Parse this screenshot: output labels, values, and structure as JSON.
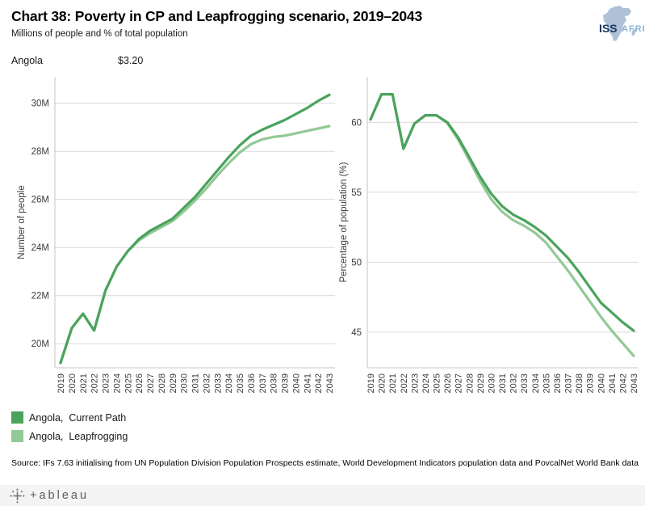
{
  "header": {
    "title": "Chart 38: Poverty in CP and Leapfrogging scenario, 2019–2043",
    "subtitle": "Millions of people and % of total population",
    "logo": {
      "org": "ISS",
      "region": "AFRICA"
    }
  },
  "filters": {
    "country": "Angola",
    "poverty_line": "$3.20"
  },
  "chart_data": [
    {
      "type": "line",
      "title": "",
      "xlabel": "",
      "ylabel": "Number of people",
      "x": [
        2019,
        2020,
        2021,
        2022,
        2023,
        2024,
        2025,
        2026,
        2027,
        2028,
        2029,
        2030,
        2031,
        2032,
        2033,
        2034,
        2035,
        2036,
        2037,
        2038,
        2039,
        2040,
        2041,
        2042,
        2043
      ],
      "ylim": [
        19.0,
        31.1
      ],
      "yticks": [
        20,
        22,
        24,
        26,
        28,
        30
      ],
      "ytick_labels": [
        "20M",
        "22M",
        "24M",
        "26M",
        "28M",
        "30M"
      ],
      "grid": true,
      "unit": "millions of people",
      "series": [
        {
          "name": "Angola, Leapfrogging",
          "color": "#93c996",
          "values": [
            19.2,
            20.65,
            21.25,
            20.55,
            22.2,
            23.2,
            23.85,
            24.3,
            24.6,
            24.85,
            25.1,
            25.5,
            25.95,
            26.45,
            27.0,
            27.5,
            27.95,
            28.3,
            28.5,
            28.6,
            28.65,
            28.75,
            28.85,
            28.95,
            29.05
          ]
        },
        {
          "name": "Angola, Current Path",
          "color": "#4aa35c",
          "values": [
            19.2,
            20.65,
            21.25,
            20.55,
            22.2,
            23.2,
            23.85,
            24.35,
            24.7,
            24.95,
            25.2,
            25.65,
            26.1,
            26.65,
            27.2,
            27.75,
            28.25,
            28.65,
            28.9,
            29.1,
            29.3,
            29.55,
            29.8,
            30.1,
            30.35
          ]
        }
      ]
    },
    {
      "type": "line",
      "title": "",
      "xlabel": "",
      "ylabel": "Percentage of population (%)",
      "x": [
        2019,
        2020,
        2021,
        2022,
        2023,
        2024,
        2025,
        2026,
        2027,
        2028,
        2029,
        2030,
        2031,
        2032,
        2033,
        2034,
        2035,
        2036,
        2037,
        2038,
        2039,
        2040,
        2041,
        2042,
        2043
      ],
      "ylim": [
        42.45,
        63.25
      ],
      "yticks": [
        45,
        50,
        55,
        60
      ],
      "ytick_labels": [
        "45",
        "50",
        "55",
        "60"
      ],
      "grid": true,
      "unit": "percent of total population",
      "series": [
        {
          "name": "Angola, Leapfrogging",
          "color": "#93c996",
          "values": [
            60.2,
            62.0,
            62.0,
            58.1,
            59.9,
            60.5,
            60.5,
            59.95,
            58.75,
            57.3,
            55.8,
            54.5,
            53.6,
            53.0,
            52.6,
            52.1,
            51.4,
            50.4,
            49.4,
            48.3,
            47.2,
            46.1,
            45.1,
            44.2,
            43.3
          ]
        },
        {
          "name": "Angola, Current Path",
          "color": "#4aa35c",
          "values": [
            60.2,
            62.0,
            62.0,
            58.1,
            59.9,
            60.5,
            60.5,
            60.0,
            58.9,
            57.5,
            56.1,
            54.9,
            54.0,
            53.4,
            53.0,
            52.5,
            51.9,
            51.1,
            50.3,
            49.3,
            48.2,
            47.1,
            46.4,
            45.7,
            45.1
          ]
        }
      ]
    }
  ],
  "legend": {
    "items": [
      {
        "label": "Angola,  Current Path",
        "color": "#4aa35c"
      },
      {
        "label": "Angola,  Leapfrogging",
        "color": "#93c996"
      }
    ]
  },
  "source": "Source: IFs 7.63 initialising from UN Population Division Population Prospects estimate, World Development Indicators population data and PovcalNet World Bank data",
  "footer": {
    "brand_wordmark": "+ableau"
  }
}
